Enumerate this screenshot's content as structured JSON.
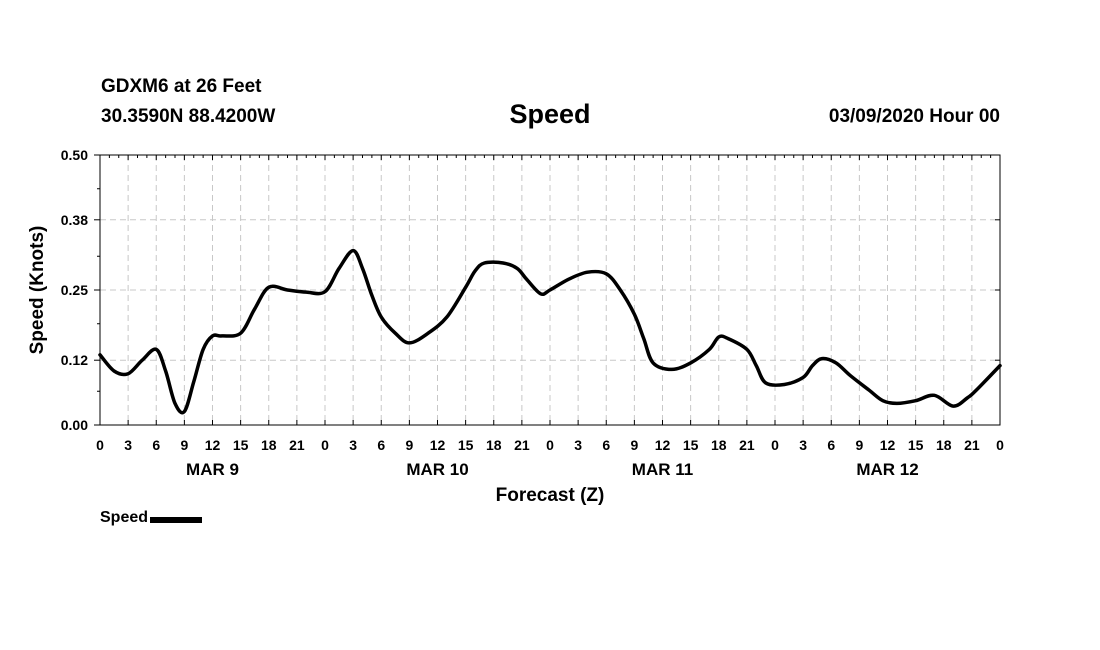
{
  "header": {
    "station": "GDXM6 at 26 Feet",
    "coords": "30.3590N 88.4200W",
    "title": "Speed",
    "datetime": "03/09/2020 Hour 00"
  },
  "legend": {
    "label": "Speed",
    "color": "#000000"
  },
  "chart_data": {
    "type": "line",
    "title": "Speed",
    "xlabel": "Forecast (Z)",
    "ylabel": "Speed (Knots)",
    "ylim": [
      0,
      0.5
    ],
    "yticks": [
      "0.00",
      "0.12",
      "0.25",
      "0.38",
      "0.50"
    ],
    "xlim_hours": [
      0,
      96
    ],
    "xtick_labels": [
      "0",
      "3",
      "6",
      "9",
      "12",
      "15",
      "18",
      "21",
      "0",
      "3",
      "6",
      "9",
      "12",
      "15",
      "18",
      "21",
      "0",
      "3",
      "6",
      "9",
      "12",
      "15",
      "18",
      "21",
      "0",
      "3",
      "6",
      "9",
      "12",
      "15",
      "18",
      "21",
      "0"
    ],
    "day_labels": [
      {
        "label": "MAR 9",
        "hour": 12
      },
      {
        "label": "MAR 10",
        "hour": 36
      },
      {
        "label": "MAR 11",
        "hour": 60
      },
      {
        "label": "MAR 12",
        "hour": 84
      }
    ],
    "grid": true,
    "legend": "bottom-left",
    "series": [
      {
        "name": "Speed",
        "color": "#000000",
        "x": [
          0,
          1.5,
          3,
          4.5,
          6,
          7,
          8,
          9,
          10,
          11,
          12,
          13,
          15,
          16.5,
          18,
          20,
          22,
          24,
          25.5,
          27,
          28,
          29,
          30,
          31.5,
          33,
          35,
          37,
          39,
          40,
          41,
          43,
          44.5,
          45.5,
          47,
          48,
          50,
          52,
          54,
          55.5,
          57,
          58,
          59,
          61,
          63,
          65,
          66,
          67,
          69,
          70,
          71,
          73,
          75,
          76,
          77,
          78.5,
          80,
          82,
          83.5,
          85,
          87,
          89,
          91,
          92.5,
          93.5,
          96
        ],
        "values": [
          0.13,
          0.1,
          0.095,
          0.12,
          0.14,
          0.1,
          0.04,
          0.025,
          0.08,
          0.14,
          0.165,
          0.165,
          0.17,
          0.215,
          0.255,
          0.25,
          0.246,
          0.247,
          0.29,
          0.323,
          0.29,
          0.24,
          0.2,
          0.17,
          0.152,
          0.17,
          0.2,
          0.255,
          0.285,
          0.3,
          0.3,
          0.29,
          0.27,
          0.243,
          0.25,
          0.27,
          0.283,
          0.28,
          0.25,
          0.205,
          0.16,
          0.115,
          0.103,
          0.115,
          0.14,
          0.163,
          0.16,
          0.14,
          0.11,
          0.078,
          0.075,
          0.088,
          0.11,
          0.123,
          0.115,
          0.092,
          0.065,
          0.045,
          0.04,
          0.045,
          0.055,
          0.035,
          0.05,
          0.065,
          0.11
        ]
      }
    ]
  }
}
